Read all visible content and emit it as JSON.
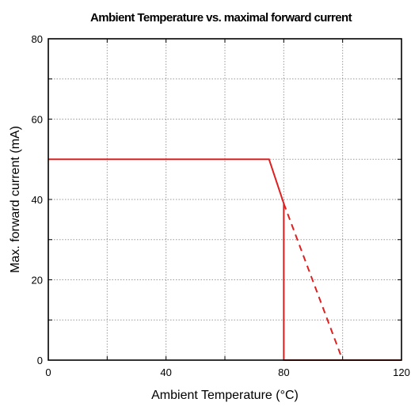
{
  "chart_data": {
    "type": "line",
    "title": "Ambient Temperature vs. maximal forward current",
    "xlabel": "Ambient Temperature (°C)",
    "ylabel": "Max. forward current (mA)",
    "xlim": [
      0,
      120
    ],
    "ylim": [
      0,
      80
    ],
    "xticks": [
      0,
      40,
      80,
      120
    ],
    "yticks": [
      0,
      20,
      40,
      60,
      80
    ],
    "grid": true,
    "line_color": "#e02020",
    "series": [
      {
        "style": "solid",
        "points": [
          [
            0,
            50
          ],
          [
            75,
            50
          ],
          [
            80,
            39
          ],
          [
            80,
            0
          ],
          [
            120,
            0
          ]
        ]
      },
      {
        "style": "dashed",
        "points": [
          [
            80,
            39
          ],
          [
            100,
            0
          ]
        ]
      }
    ]
  }
}
